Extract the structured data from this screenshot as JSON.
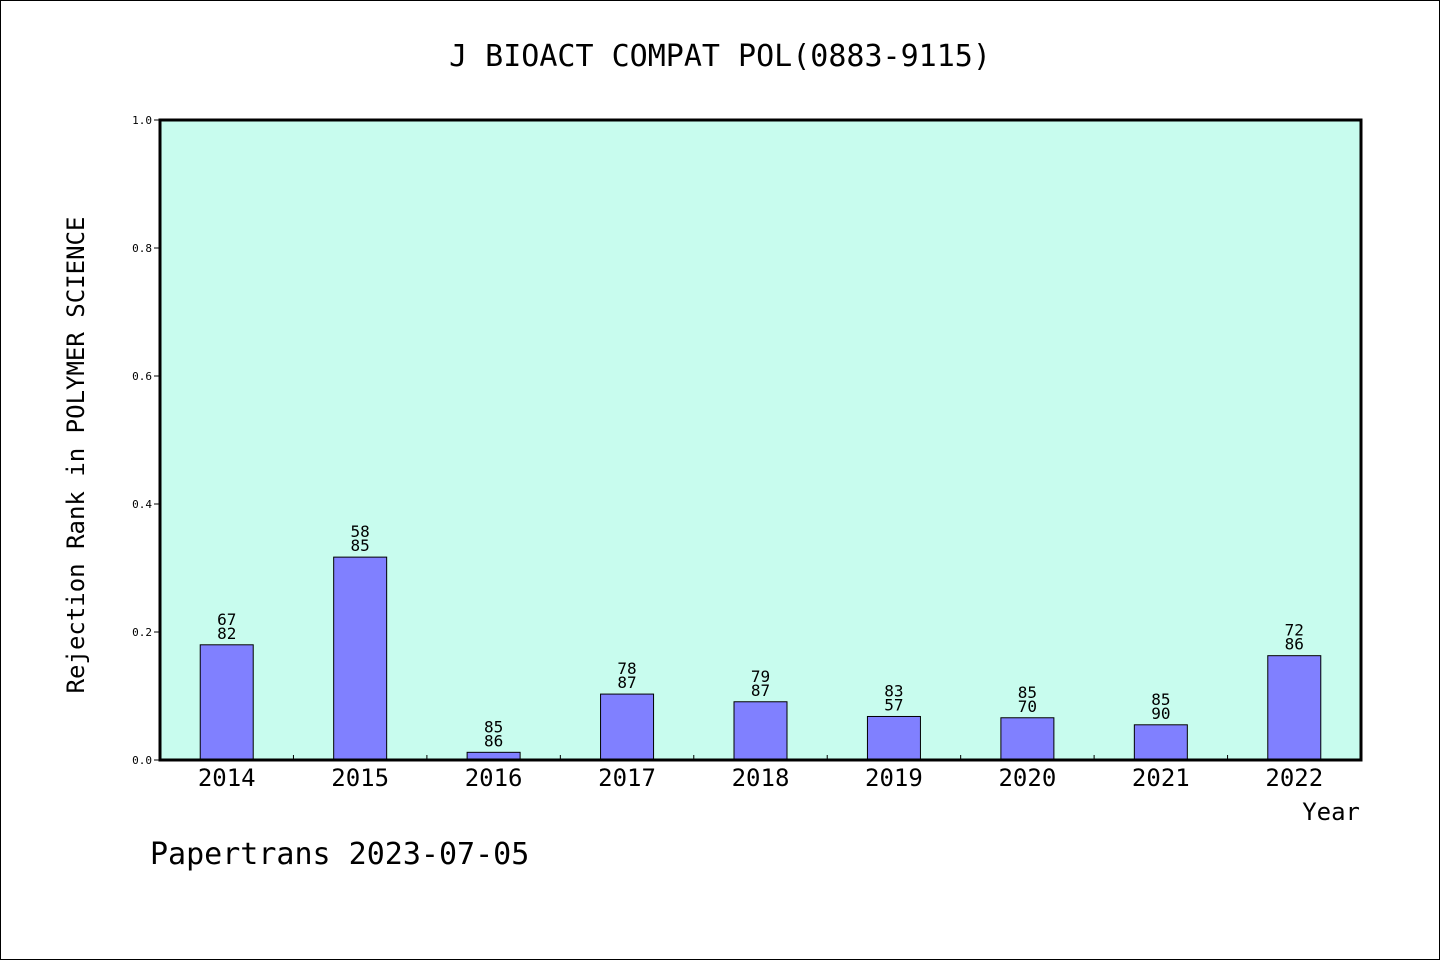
{
  "chart_data": {
    "type": "bar",
    "title": "J BIOACT COMPAT POL(0883-9115)",
    "xlabel": "Year",
    "ylabel": "Rejection Rank in POLYMER SCIENCE",
    "ylim": [
      0,
      1.0
    ],
    "yticks": [
      "0.0",
      "0.2",
      "0.4",
      "0.6",
      "0.8",
      "1.0"
    ],
    "categories": [
      "2014",
      "2015",
      "2016",
      "2017",
      "2018",
      "2019",
      "2020",
      "2021",
      "2022"
    ],
    "values": [
      0.18,
      0.317,
      0.012,
      0.103,
      0.091,
      0.068,
      0.066,
      0.055,
      0.163
    ],
    "labels_top": [
      "67",
      "58",
      "85",
      "78",
      "79",
      "83",
      "85",
      "85",
      "72"
    ],
    "labels_bottom": [
      "82",
      "85",
      "86",
      "87",
      "87",
      "57",
      "70",
      "90",
      "86"
    ],
    "grid": false,
    "colors": {
      "plot_background": "#c8fcee",
      "bar_fill": "#8080ff",
      "bar_stroke": "#000000"
    }
  },
  "footer": "Papertrans 2023-07-05"
}
